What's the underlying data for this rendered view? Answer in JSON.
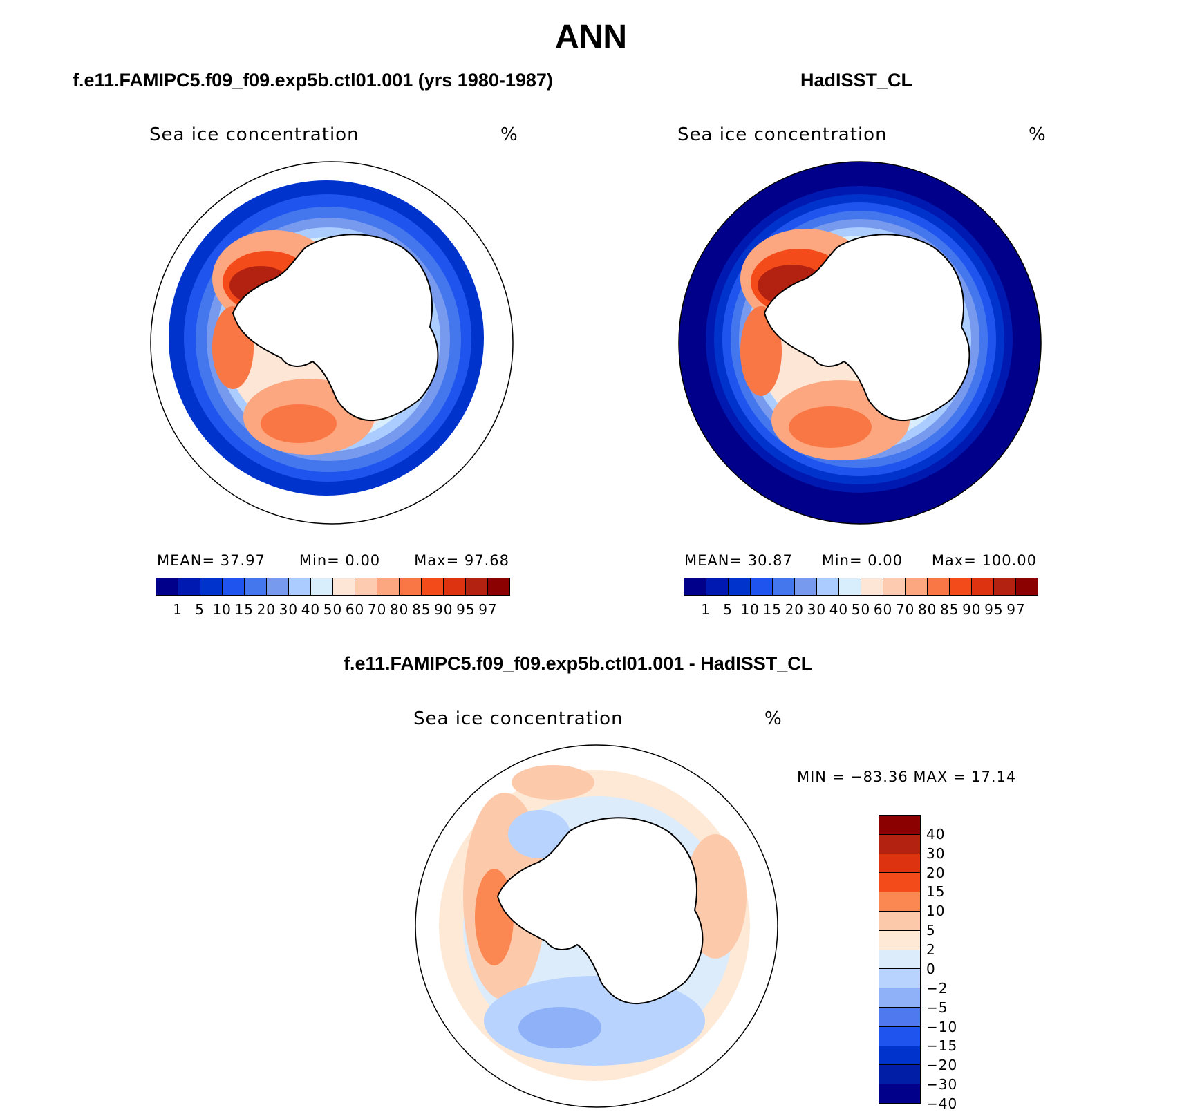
{
  "title": "ANN",
  "colors": {
    "ocean_white": "#ffffff",
    "coast": "#000000"
  },
  "panels": [
    {
      "id": "model",
      "title": "f.e11.FAMIPC5.f09_f09.exp5b.ctl01.001 (yrs 1980-1987)",
      "var_label": "Sea ice concentration",
      "units": "%",
      "stats": {
        "mean_label": "MEAN=",
        "mean": "37.97",
        "min_label": "Min=",
        "min": "0.00",
        "max_label": "Max=",
        "max": "97.68"
      },
      "colorbar": {
        "colors": [
          "#00008b",
          "#0019b0",
          "#0033cc",
          "#1f55ee",
          "#4477ee",
          "#7799ee",
          "#aaccff",
          "#d9eefd",
          "#fde6d6",
          "#fdcbb0",
          "#fca77f",
          "#f97744",
          "#f44b1a",
          "#dd3311",
          "#b32211",
          "#8b0000"
        ],
        "labels": [
          "1",
          "5",
          "10",
          "15",
          "20",
          "30",
          "40",
          "50",
          "60",
          "70",
          "80",
          "85",
          "90",
          "95",
          "97"
        ]
      }
    },
    {
      "id": "obs",
      "title": "HadISST_CL",
      "var_label": "Sea ice concentration",
      "units": "%",
      "stats": {
        "mean_label": "MEAN=",
        "mean": "30.87",
        "min_label": "Min=",
        "min": "0.00",
        "max_label": "Max=",
        "max": "100.00"
      },
      "colorbar": {
        "colors": [
          "#00008b",
          "#0019b0",
          "#0033cc",
          "#1f55ee",
          "#4477ee",
          "#7799ee",
          "#aaccff",
          "#d9eefd",
          "#fde6d6",
          "#fdcbb0",
          "#fca77f",
          "#f97744",
          "#f44b1a",
          "#dd3311",
          "#b32211",
          "#8b0000"
        ],
        "labels": [
          "1",
          "5",
          "10",
          "15",
          "20",
          "30",
          "40",
          "50",
          "60",
          "70",
          "80",
          "85",
          "90",
          "95",
          "97"
        ]
      }
    },
    {
      "id": "diff",
      "title": "f.e11.FAMIPC5.f09_f09.exp5b.ctl01.001 - HadISST_CL",
      "var_label": "Sea ice concentration",
      "units": "%",
      "stats": {
        "text": "MIN = −83.36 MAX =   17.14"
      },
      "colorbar": {
        "colors": [
          "#8b0000",
          "#b32211",
          "#dd3311",
          "#f44b1a",
          "#fb8752",
          "#fdc9ab",
          "#fde9d6",
          "#dcecfb",
          "#b9d3ff",
          "#8eb1f8",
          "#4f79ee",
          "#1f55ee",
          "#0033cc",
          "#001fa6",
          "#00008b"
        ],
        "labels": [
          "40",
          "30",
          "20",
          "15",
          "10",
          "5",
          "2",
          "0",
          "−2",
          "−5",
          "−10",
          "−15",
          "−20",
          "−30",
          "−40"
        ]
      }
    }
  ]
}
